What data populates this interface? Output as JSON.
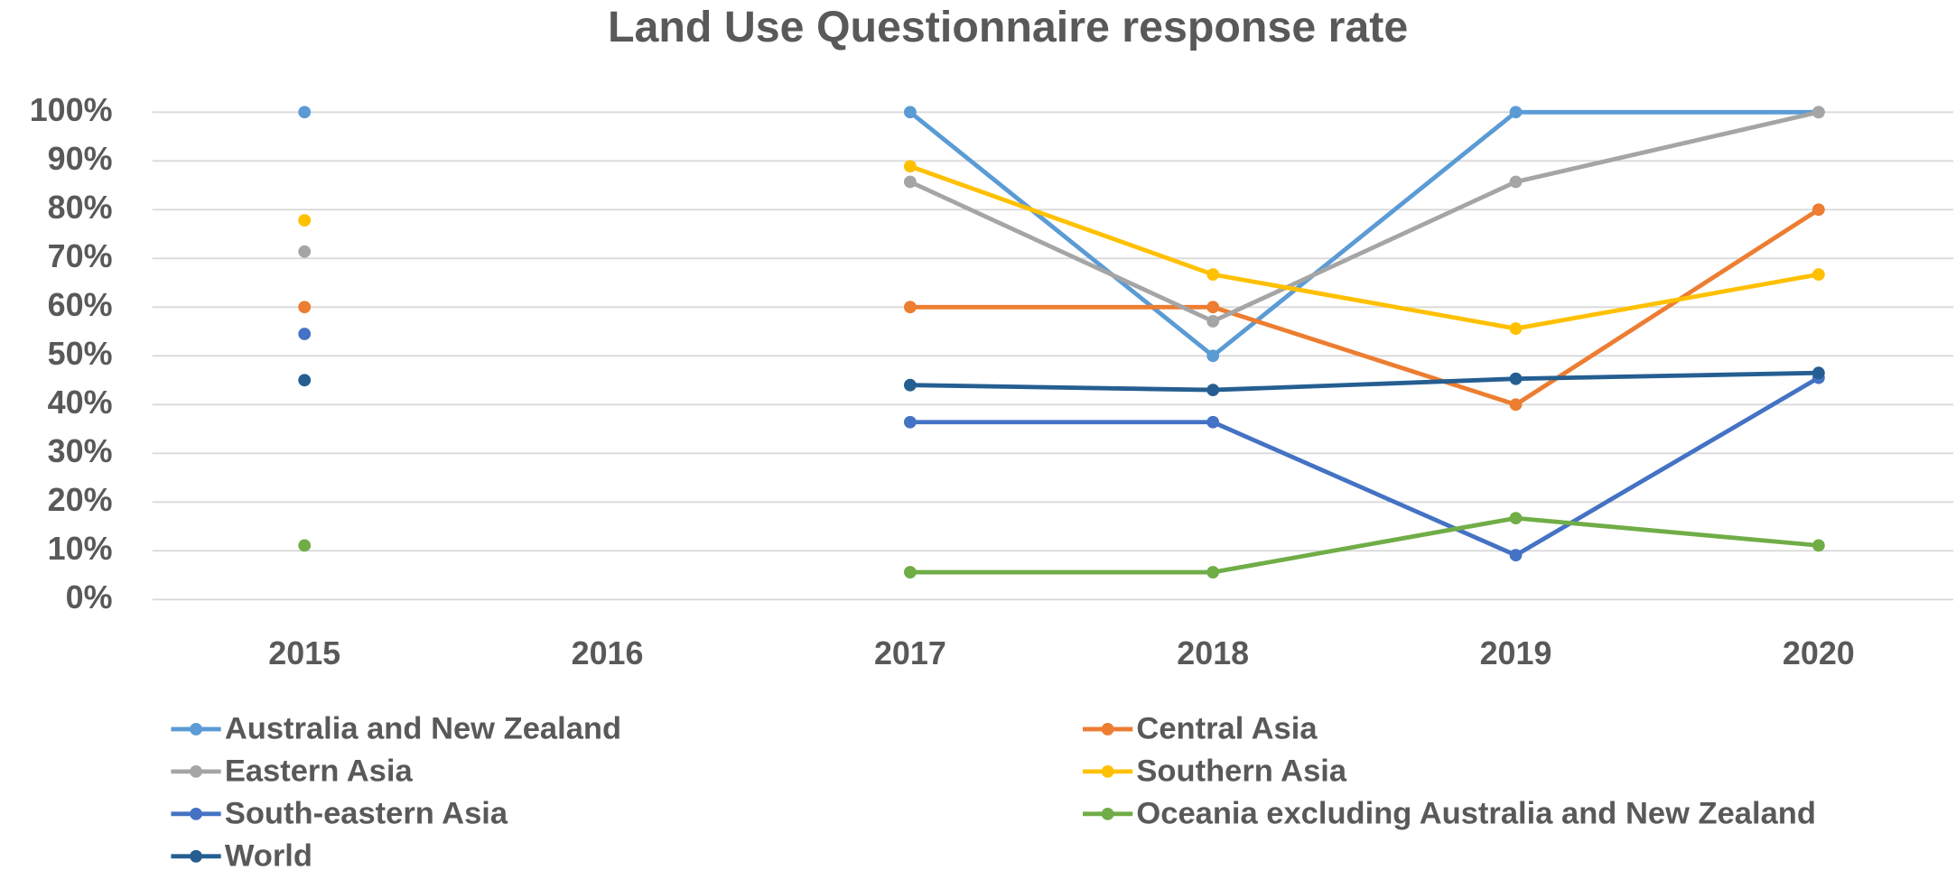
{
  "chart_data": {
    "type": "line",
    "title": "Land Use Questionnaire response rate",
    "categories": [
      "2015",
      "2016",
      "2017",
      "2018",
      "2019",
      "2020"
    ],
    "series": [
      {
        "name": "Australia and New Zealand",
        "color": "#5b9bd5",
        "values": [
          100,
          null,
          100,
          50,
          100,
          100
        ]
      },
      {
        "name": "Central Asia",
        "color": "#ed7d31",
        "values": [
          60,
          null,
          60,
          60,
          40,
          80
        ]
      },
      {
        "name": "Eastern Asia",
        "color": "#a5a5a5",
        "values": [
          71.4,
          null,
          85.7,
          57.1,
          85.7,
          100
        ]
      },
      {
        "name": "Southern Asia",
        "color": "#ffc000",
        "values": [
          77.8,
          null,
          88.9,
          66.7,
          55.6,
          66.7
        ]
      },
      {
        "name": "South-eastern Asia",
        "color": "#4472c4",
        "values": [
          54.5,
          null,
          36.4,
          36.4,
          9.1,
          45.5
        ]
      },
      {
        "name": "Oceania excluding Australia and New Zealand",
        "color": "#70ad47",
        "values": [
          11.1,
          null,
          5.6,
          5.6,
          16.7,
          11.1
        ]
      },
      {
        "name": "World",
        "color": "#255e91",
        "values": [
          45,
          null,
          44,
          43,
          45.3,
          46.5
        ]
      }
    ],
    "ylim": [
      0,
      100
    ],
    "yticks": [
      {
        "value": 0,
        "label": "0%"
      },
      {
        "value": 10,
        "label": "10%"
      },
      {
        "value": 20,
        "label": "20%"
      },
      {
        "value": 30,
        "label": "30%"
      },
      {
        "value": 40,
        "label": "40%"
      },
      {
        "value": 50,
        "label": "50%"
      },
      {
        "value": 60,
        "label": "60%"
      },
      {
        "value": 70,
        "label": "70%"
      },
      {
        "value": 80,
        "label": "80%"
      },
      {
        "value": 90,
        "label": "90%"
      },
      {
        "value": 100,
        "label": "100%"
      }
    ],
    "grid": true,
    "legend": "bottom"
  }
}
